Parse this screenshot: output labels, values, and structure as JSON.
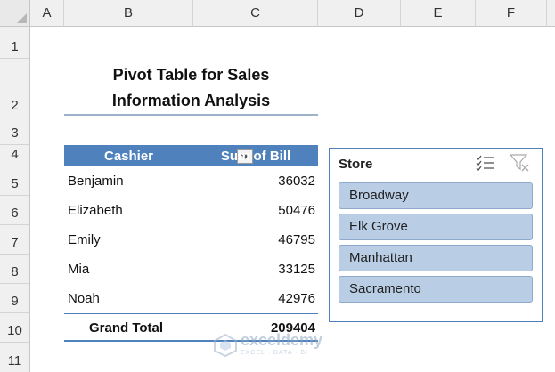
{
  "columns": [
    "A",
    "B",
    "C",
    "D",
    "E",
    "F"
  ],
  "rows": [
    "1",
    "2",
    "3",
    "4",
    "5",
    "6",
    "7",
    "8",
    "9",
    "10",
    "11"
  ],
  "title": {
    "line1": "Pivot Table for Sales",
    "line2": "Information Analysis"
  },
  "pivot": {
    "header": {
      "cashier": "Cashier",
      "sum": "Sum of Bill"
    },
    "rows": [
      {
        "name": "Benjamin",
        "value": "36032"
      },
      {
        "name": "Elizabeth",
        "value": "50476"
      },
      {
        "name": "Emily",
        "value": "46795"
      },
      {
        "name": "Mia",
        "value": "33125"
      },
      {
        "name": "Noah",
        "value": "42976"
      }
    ],
    "total": {
      "label": "Grand Total",
      "value": "209404"
    }
  },
  "slicer": {
    "title": "Store",
    "items": [
      "Broadway",
      "Elk Grove",
      "Manhattan",
      "Sacramento"
    ],
    "icons": {
      "multi_select": "multi-select-icon",
      "clear_filter": "clear-filter-icon"
    }
  },
  "watermark": {
    "name": "exceldemy",
    "tagline": "EXCEL · DATA · BI"
  },
  "colors": {
    "header_blue": "#4f81bd",
    "slicer_item": "#b9cde5",
    "grid_header": "#f0f0f0"
  }
}
